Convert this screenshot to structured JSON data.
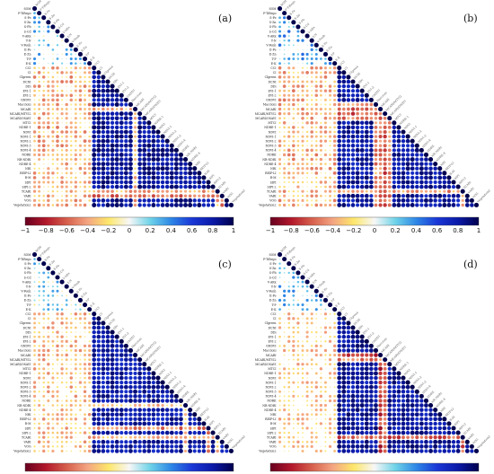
{
  "figure": {
    "colorscale": {
      "stops": [
        "#67001f",
        "#b2182b",
        "#d6604d",
        "#f4a582",
        "#fde76b",
        "#f7f7f7",
        "#6fd3e8",
        "#2e87e6",
        "#1a37d6",
        "#0b1aa8",
        "#00004d"
      ],
      "ticks": [
        "−1",
        "−0.8",
        "−0.6",
        "−0.4",
        "−0.2",
        "0",
        "0.2",
        "0.4",
        "0.6",
        "0.8",
        "1"
      ]
    },
    "variables": [
      "SOM",
      "F-TiRego",
      "S-Fe",
      "S-Zn",
      "S-Pb",
      "S-Cd",
      "V-ARx",
      "T-N",
      "V-Fenh",
      "E-Fe",
      "E-Zn",
      "T-P",
      "E-K",
      "CCI",
      "CI",
      "Clgreen",
      "DCNI",
      "DDi",
      "EVI-1",
      "EVI-2",
      "GNDVI",
      "Maccioni",
      "MCARI",
      "MCARI/MTVI2",
      "MCARI/OSAVI",
      "MTCI",
      "NDRE-1",
      "NDVI",
      "NDVI-1",
      "NDVI-2",
      "NDVI-3",
      "NDVI-4",
      "NDRE",
      "NR-NDRI",
      "NDRE-4",
      "NRI",
      "REIP-LI",
      "R-M",
      "SIPI",
      "SIPI-2",
      "TCARI",
      "VARI",
      "VOG",
      "Vegetation2"
    ],
    "panels": [
      {
        "label": "(a)"
      },
      {
        "label": "(b)"
      },
      {
        "label": "(c)"
      },
      {
        "label": "(d)"
      }
    ]
  },
  "chart_data": [
    {
      "type": "heatmap",
      "panel": "(a)",
      "matrix_form": "lower-triangular correlation matrix, circles sized and colored by r",
      "value_range": [
        -1,
        1
      ],
      "pattern": {
        "soil_vs_soil_block_r": 0.15,
        "soil_vs_index_r": -0.3,
        "index_vs_index_r": 0.82,
        "special_negative_rows": {
          "MCARI": -0.35,
          "TCARI": -0.4,
          "VARI": -0.55
        }
      }
    },
    {
      "type": "heatmap",
      "panel": "(b)",
      "matrix_form": "lower-triangular correlation matrix, circles sized and colored by r",
      "value_range": [
        -1,
        1
      ],
      "pattern": {
        "soil_vs_soil_block_r": 0.2,
        "soil_vs_index_r": -0.3,
        "index_vs_index_r": 0.8,
        "special_negative_rows": {
          "Maccioni": -0.45,
          "MCARI": -0.55,
          "MCARI/MTVI2": -0.6,
          "MCARI/OSAVI": -0.5,
          "TCARI": -0.45
        }
      }
    },
    {
      "type": "heatmap",
      "panel": "(c)",
      "matrix_form": "lower-triangular correlation matrix, circles sized and colored by r",
      "value_range": [
        -1,
        1
      ],
      "pattern": {
        "soil_vs_soil_block_r": 0.1,
        "soil_vs_index_r": -0.25,
        "index_vs_index_r": 0.78,
        "special_negative_rows": {
          "NR-NDRI": -0.3,
          "SIPI": -0.5,
          "TCARI": -0.35
        }
      }
    },
    {
      "type": "heatmap",
      "panel": "(d)",
      "matrix_form": "lower-triangular correlation matrix, circles sized and colored by r",
      "value_range": [
        -1,
        1
      ],
      "pattern": {
        "soil_vs_soil_block_r": 0.15,
        "soil_vs_index_r": -0.2,
        "index_vs_index_r": 0.8,
        "special_negative_rows": {
          "MCARI": -0.7,
          "MCARI/MTVI2": -0.5,
          "TCARI": -0.6
        }
      }
    }
  ]
}
